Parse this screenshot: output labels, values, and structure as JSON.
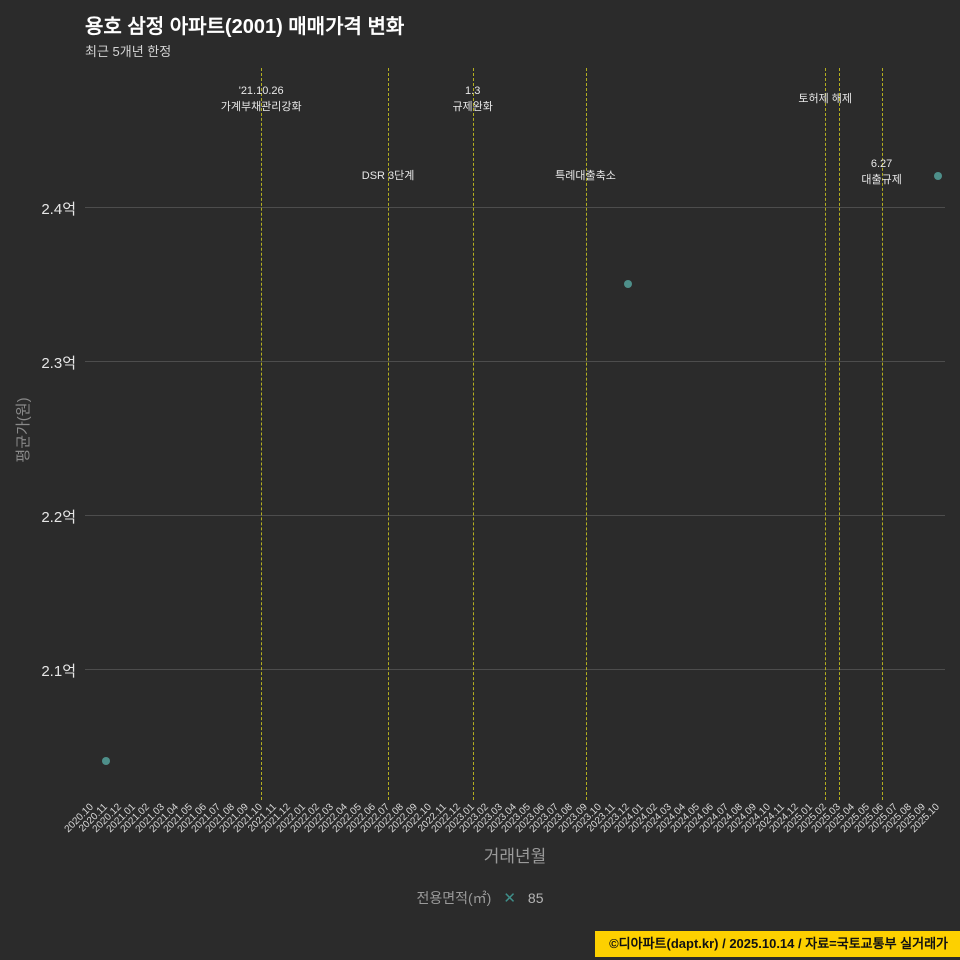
{
  "header": {
    "title": "용호 삼정 아파트(2001) 매매가격 변화",
    "subtitle": "최근 5개년 한정"
  },
  "chart_data": {
    "type": "scatter",
    "title": "용호 삼정 아파트(2001) 매매가격 변화",
    "subtitle": "최근 5개년 한정",
    "xlabel": "거래년월",
    "ylabel": "평균가(원)",
    "grid": true,
    "legend_position": "bottom",
    "ylim": [
      2.015,
      2.49
    ],
    "y_unit": "억",
    "y_ticks": [
      {
        "label": "2.4억",
        "value": 2.4
      },
      {
        "label": "2.3억",
        "value": 2.3
      },
      {
        "label": "2.2억",
        "value": 2.2
      },
      {
        "label": "2.1억",
        "value": 2.1
      }
    ],
    "x_categories": [
      "2020.10",
      "2020.11",
      "2020.12",
      "2021.01",
      "2021.02",
      "2021.03",
      "2021.04",
      "2021.05",
      "2021.06",
      "2021.07",
      "2021.08",
      "2021.09",
      "2021.10",
      "2021.11",
      "2021.12",
      "2022.01",
      "2022.02",
      "2022.03",
      "2022.04",
      "2022.05",
      "2022.06",
      "2022.07",
      "2022.08",
      "2022.09",
      "2022.10",
      "2022.11",
      "2022.12",
      "2023.01",
      "2023.02",
      "2023.03",
      "2023.04",
      "2023.05",
      "2023.06",
      "2023.07",
      "2023.08",
      "2023.09",
      "2023.10",
      "2023.11",
      "2023.12",
      "2024.01",
      "2024.02",
      "2024.03",
      "2024.04",
      "2024.05",
      "2024.06",
      "2024.07",
      "2024.08",
      "2024.09",
      "2024.10",
      "2024.11",
      "2024.12",
      "2025.01",
      "2025.02",
      "2025.03",
      "2025.04",
      "2025.05",
      "2025.06",
      "2025.07",
      "2025.08",
      "2025.09",
      "2025.10"
    ],
    "series": [
      {
        "name": "85",
        "marker": "circle",
        "color": "#4e8f8a",
        "points": [
          {
            "x": "2020.11",
            "y": 2.04
          },
          {
            "x": "2023.12",
            "y": 2.35
          },
          {
            "x": "2025.10",
            "y": 2.42
          }
        ]
      }
    ],
    "event_lines": [
      {
        "x": "2021.10",
        "lines": [
          "'21.10.26",
          "가계부채관리강화"
        ],
        "row": "top"
      },
      {
        "x": "2022.07",
        "lines": [
          "DSR 3단계"
        ],
        "row": "mid"
      },
      {
        "x": "2023.01",
        "lines": [
          "1.3",
          "규제완화"
        ],
        "row": "top"
      },
      {
        "x": "2023.09",
        "lines": [
          "특례대출축소"
        ],
        "row": "mid"
      },
      {
        "x": "2025.02",
        "lines": [
          "토허제 해제"
        ],
        "row": "top"
      },
      {
        "x": "2025.03",
        "lines": [],
        "row": "top"
      },
      {
        "x": "2025.06",
        "lines": [
          "6.27",
          "대출규제"
        ],
        "row": "mid"
      }
    ],
    "legend": {
      "label": "전용면적(㎡)",
      "marker": "x-marker",
      "value": "85"
    }
  },
  "footer": {
    "credit": "©디아파트(dapt.kr) / 2025.10.14 / 자료=국토교통부 실거래가"
  },
  "colors": {
    "background": "#2b2b2b",
    "grid": "#4d4d4d",
    "event_line": "#b3ae1f",
    "point": "#4e8f8a",
    "footer_bg": "#fdd000",
    "footer_text": "#111111"
  }
}
